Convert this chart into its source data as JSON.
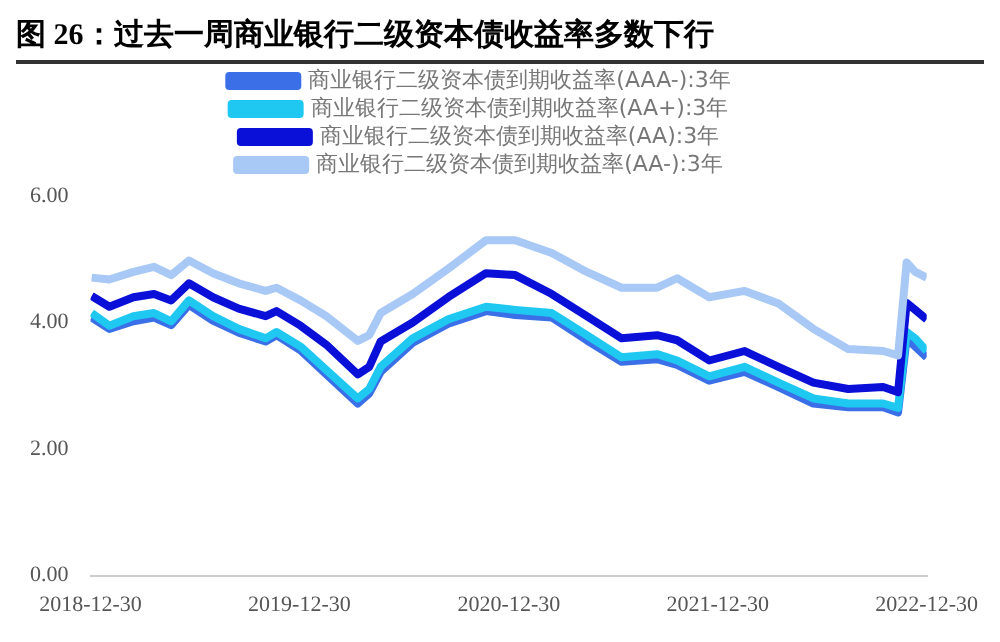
{
  "chart_data": {
    "type": "line",
    "title": "图 26：过去一周商业银行二级资本债收益率多数下行",
    "x": [
      "2019-01-01",
      "2019-02-01",
      "2019-03-15",
      "2019-04-20",
      "2019-05-20",
      "2019-06-20",
      "2019-08-01",
      "2019-09-15",
      "2019-11-01",
      "2019-11-20",
      "2020-01-01",
      "2020-02-15",
      "2020-04-10",
      "2020-04-30",
      "2020-05-20",
      "2020-07-15",
      "2020-09-15",
      "2020-11-20",
      "2021-01-10",
      "2021-03-15",
      "2021-05-15",
      "2021-07-15",
      "2021-09-15",
      "2021-10-20",
      "2021-12-15",
      "2022-02-15",
      "2022-04-15",
      "2022-06-15",
      "2022-08-15",
      "2022-10-15",
      "2022-11-10",
      "2022-11-25",
      "2022-12-10",
      "2022-12-30"
    ],
    "series": [
      {
        "name": "商业银行二级资本债到期收益率(AAA-):3年",
        "color": "#3a6fe8",
        "values": [
          4.08,
          3.9,
          4.02,
          4.08,
          3.96,
          4.28,
          4.03,
          3.84,
          3.7,
          3.8,
          3.56,
          3.18,
          2.72,
          2.88,
          3.22,
          3.68,
          3.98,
          4.18,
          4.12,
          4.08,
          3.72,
          3.38,
          3.42,
          3.33,
          3.08,
          3.22,
          2.98,
          2.72,
          2.66,
          2.66,
          2.58,
          3.75,
          3.62,
          3.45
        ]
      },
      {
        "name": "商业银行二级资本债到期收益率(AA+):3年",
        "color": "#1ec8f0",
        "values": [
          4.15,
          3.95,
          4.1,
          4.15,
          4.02,
          4.35,
          4.1,
          3.9,
          3.75,
          3.85,
          3.62,
          3.25,
          2.8,
          2.95,
          3.3,
          3.75,
          4.05,
          4.25,
          4.2,
          4.15,
          3.8,
          3.45,
          3.5,
          3.4,
          3.15,
          3.3,
          3.05,
          2.8,
          2.72,
          2.72,
          2.65,
          3.85,
          3.75,
          3.55
        ]
      },
      {
        "name": "商业银行二级资本债到期收益率(AA):3年",
        "color": "#0a10d8",
        "values": [
          4.42,
          4.25,
          4.4,
          4.45,
          4.35,
          4.62,
          4.4,
          4.22,
          4.1,
          4.18,
          3.95,
          3.65,
          3.18,
          3.3,
          3.7,
          4.0,
          4.4,
          4.78,
          4.75,
          4.45,
          4.1,
          3.75,
          3.8,
          3.72,
          3.4,
          3.55,
          3.3,
          3.05,
          2.95,
          2.98,
          2.9,
          4.31,
          4.2,
          4.05
        ]
      },
      {
        "name": "商业银行二级资本债到期收益率(AA-):3年",
        "color": "#a8c8f5",
        "values": [
          4.71,
          4.68,
          4.8,
          4.88,
          4.75,
          4.98,
          4.78,
          4.62,
          4.5,
          4.55,
          4.35,
          4.1,
          3.71,
          3.8,
          4.15,
          4.45,
          4.85,
          5.3,
          5.3,
          5.1,
          4.8,
          4.55,
          4.55,
          4.7,
          4.4,
          4.5,
          4.3,
          3.9,
          3.58,
          3.55,
          3.48,
          4.95,
          4.8,
          4.71
        ]
      }
    ],
    "xlim": [
      "2018-12-30",
      "2022-12-30"
    ],
    "xticks": [
      "2018-12-30",
      "2019-12-30",
      "2020-12-30",
      "2021-12-30",
      "2022-12-30"
    ],
    "ylim": [
      0,
      6
    ],
    "yticks": [
      {
        "value": 0,
        "label": "0.00"
      },
      {
        "value": 2,
        "label": "2.00"
      },
      {
        "value": 4,
        "label": "4.00"
      },
      {
        "value": 6,
        "label": "6.00"
      }
    ],
    "legend": "top",
    "marker": "none",
    "line_style": "solid"
  }
}
